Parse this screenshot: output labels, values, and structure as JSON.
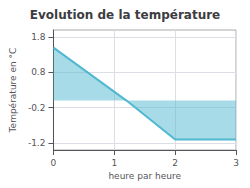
{
  "chart_data": {
    "type": "area",
    "title": "Evolution de la température",
    "xlabel": "heure par heure",
    "ylabel": "Température en °C",
    "x": [
      0,
      1.2,
      2.0,
      3.0
    ],
    "values": [
      1.5,
      0.0,
      -1.1,
      -1.1
    ],
    "color": "#50b8d0",
    "xlim": [
      0,
      3.0
    ],
    "ylim": [
      -1.4,
      2.0
    ],
    "xticks": [
      0,
      1,
      2,
      3
    ],
    "yticks": [
      -1.2,
      -0.2,
      0.8,
      1.8
    ],
    "grid": true
  }
}
